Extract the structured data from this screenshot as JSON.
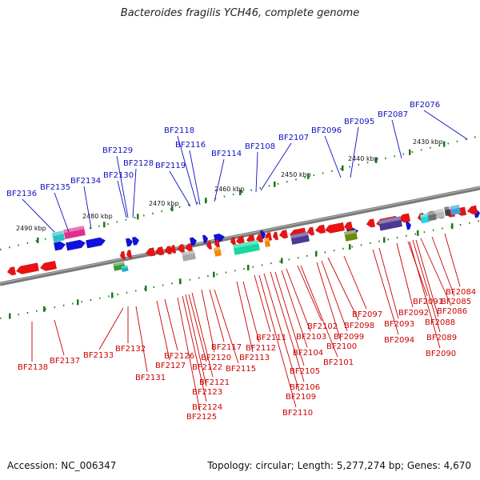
{
  "title": "Bacteroides fragilis YCH46, complete genome",
  "footer": {
    "accession": "Accession: NC_006347",
    "summary": "Topology: circular; Length: 5,277,274 bp; Genes: 4,670"
  },
  "colors": {
    "upper_label": "#1010c0",
    "lower_label": "#cc0000",
    "forward_gene": "#1010e0",
    "reverse_gene": "#ee1010",
    "track_dots": "#1a7a1a",
    "backbone": "#7a7a7a"
  },
  "scale_ticks": [
    "2490 kbp",
    "2480 kbp",
    "2470 kbp",
    "2460 kbp",
    "2450 kbp",
    "2440 kbp",
    "2430 kbp"
  ],
  "upper_labels": [
    "BF2136",
    "BF2135",
    "BF2134",
    "BF2130",
    "BF2129",
    "BF2128",
    "BF2119",
    "BF2118",
    "BF2116",
    "BF2114",
    "BF2108",
    "BF2107",
    "BF2096",
    "BF2095",
    "BF2087",
    "BF2076"
  ],
  "lower_labels": [
    "BF2138",
    "BF2137",
    "BF2133",
    "BF2132",
    "BF2131",
    "BF2127",
    "BF2126",
    "BF2125",
    "BF2124",
    "BF2123",
    "BF2122",
    "BF2121",
    "BF2120",
    "BF2117",
    "BF2115",
    "BF2113",
    "BF2112",
    "BF2111",
    "BF2110",
    "BF2109",
    "BF2106",
    "BF2105",
    "BF2104",
    "BF2103",
    "BF2102",
    "BF2101",
    "BF2100",
    "BF2099",
    "BF2098",
    "BF2097",
    "BF2094",
    "BF2093",
    "BF2092",
    "BF2091",
    "BF2090",
    "BF2089",
    "BF2088",
    "BF2086",
    "BF2085",
    "BF2084"
  ]
}
